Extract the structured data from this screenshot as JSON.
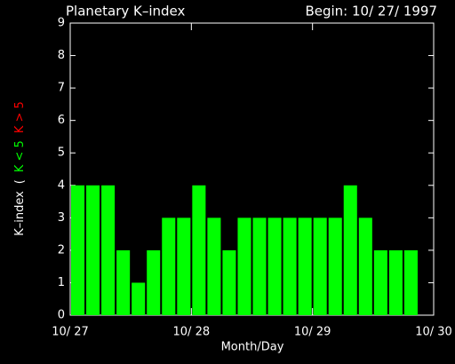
{
  "chart_data": {
    "type": "bar",
    "title": "Planetary K–index",
    "subtitle": "Begin: 10/ 27/ 1997",
    "xlabel": "Month/Day",
    "ylabel_parts": [
      {
        "text": "K–index",
        "color": "#ffffff"
      },
      {
        "text": "(",
        "color": "#ffffff"
      },
      {
        "text": "K < 5",
        "color": "#00ff00"
      },
      {
        "text": "K > 5",
        "color": "#ff0000"
      }
    ],
    "x": [
      0,
      0.125,
      0.25,
      0.375,
      0.5,
      0.625,
      0.75,
      0.875,
      1,
      1.125,
      1.25,
      1.375,
      1.5,
      1.625,
      1.75,
      1.875,
      2,
      2.125,
      2.25,
      2.375,
      2.5,
      2.625,
      2.75
    ],
    "values": [
      4,
      4,
      4,
      2,
      1,
      2,
      3,
      3,
      4,
      3,
      2,
      3,
      3,
      3,
      3,
      3,
      3,
      3,
      4,
      3,
      2,
      2,
      2
    ],
    "bar_width": 0.125,
    "color": "#00ff00",
    "xlim": [
      0,
      3
    ],
    "xticks": [
      {
        "value": 0,
        "label": "10/ 27"
      },
      {
        "value": 1,
        "label": "10/ 28"
      },
      {
        "value": 2,
        "label": "10/ 29"
      },
      {
        "value": 3,
        "label": "10/ 30"
      }
    ],
    "ylim": [
      0,
      9
    ],
    "yticks": [
      0,
      1,
      2,
      3,
      4,
      5,
      6,
      7,
      8,
      9
    ],
    "grid": false
  }
}
